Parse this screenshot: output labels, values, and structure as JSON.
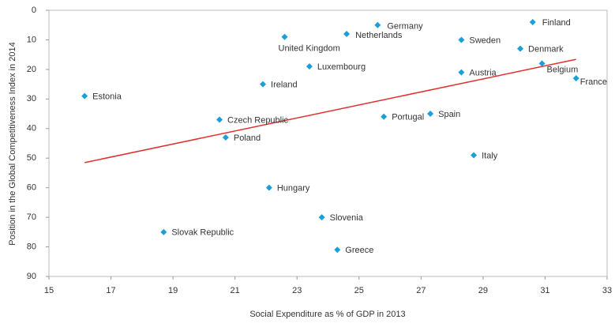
{
  "chart_data": {
    "type": "scatter",
    "x_label": "Social Expenditure as % of GDP in 2013",
    "y_label": "Position in the Global Competitiveness Index in 2014",
    "categories": [
      "Estonia",
      "Slovak Republic",
      "Czech Republic",
      "Poland",
      "Ireland",
      "United Kingdom",
      "Hungary",
      "Luxembourg",
      "Slovenia",
      "Netherlands",
      "Greece",
      "Germany",
      "Portugal",
      "Spain",
      "Sweden",
      "Austria",
      "Italy",
      "Denmark",
      "Finland",
      "Belgium",
      "France"
    ],
    "x": [
      16.15,
      18.7,
      20.5,
      20.7,
      21.9,
      22.6,
      22.1,
      23.4,
      23.8,
      24.6,
      24.3,
      25.6,
      25.8,
      27.3,
      28.3,
      28.3,
      28.7,
      30.2,
      30.6,
      30.9,
      32.0
    ],
    "values": [
      29,
      75,
      37,
      43,
      25,
      9,
      60,
      19,
      70,
      8,
      81,
      5,
      36,
      35,
      10,
      21,
      49,
      13,
      4,
      18,
      23
    ],
    "color": "#1b9fd6",
    "trendline": {
      "color": "#e03030",
      "x": [
        16.15,
        32.0
      ],
      "y": [
        51.5,
        16.6
      ]
    },
    "xlim": [
      15,
      33
    ],
    "xticks": [
      15,
      17,
      19,
      21,
      23,
      25,
      27,
      29,
      31,
      33
    ],
    "ylim": [
      0,
      90
    ],
    "yticks": [
      0,
      10,
      20,
      30,
      40,
      50,
      60,
      70,
      80,
      90
    ],
    "y_inverted": true
  }
}
